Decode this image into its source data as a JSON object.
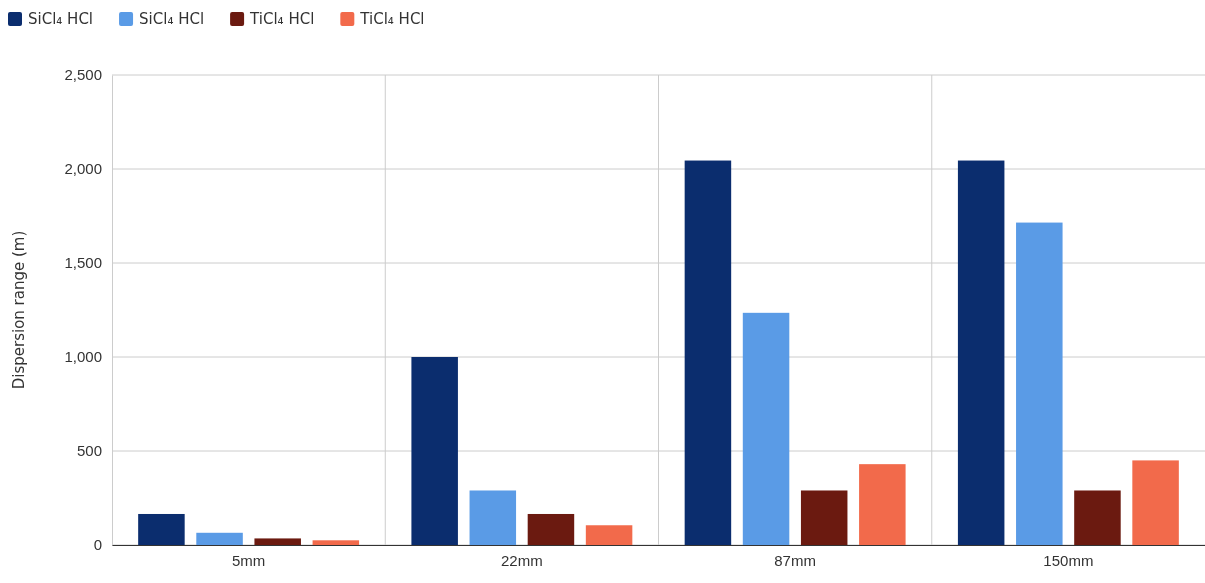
{
  "chart_data": {
    "type": "bar",
    "ylabel": "Dispersion range (m)",
    "categories": [
      "5mm",
      "22mm",
      "87mm",
      "150mm"
    ],
    "series": [
      {
        "name": "SiCl₄ HCl",
        "color": "#0b2d6e",
        "values": [
          165,
          1000,
          2045,
          2045
        ]
      },
      {
        "name": "SiCl₄ HCl",
        "color": "#5a9be6",
        "values": [
          65,
          290,
          1235,
          1715
        ]
      },
      {
        "name": "TiCl₄ HCl",
        "color": "#6b1a10",
        "values": [
          35,
          165,
          290,
          290
        ]
      },
      {
        "name": "TiCl₄ HCl",
        "color": "#f26a4b",
        "values": [
          25,
          105,
          430,
          450
        ]
      }
    ],
    "ylim": [
      0,
      2500
    ],
    "yticks": [
      {
        "value": 0,
        "label": "0"
      },
      {
        "value": 500,
        "label": "500"
      },
      {
        "value": 1000,
        "label": "1,000"
      },
      {
        "value": 1500,
        "label": "1,500"
      },
      {
        "value": 2000,
        "label": "2,000"
      },
      {
        "value": 2500,
        "label": "2,500"
      }
    ],
    "grid": true,
    "legend": "top left"
  }
}
